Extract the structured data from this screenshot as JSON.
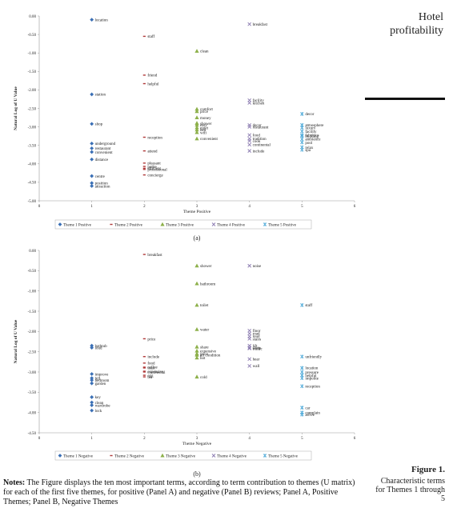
{
  "page": {
    "title": "Hotel profitability",
    "figure_label": "Figure 1.",
    "figure_caption": "Characteristic terms for Themes 1 through 5",
    "notes_label": "Notes:",
    "notes_text": "The Figure displays the ten most important terms, according to term contribution to themes (U matrix) for each of the first five themes, for positive (Panel A) and negative (Panel B) reviews; Panel A, Positive Themes; Panel B, Negative Themes"
  },
  "chart_data": [
    {
      "type": "scatter",
      "panel_label": "(a)",
      "xlabel": "Theme Positive",
      "ylabel": "Natural Log of U Value",
      "xlim": [
        0,
        6
      ],
      "ylim": [
        -5.0,
        0.0
      ],
      "xticks": [
        "0",
        "1",
        "2",
        "3",
        "4",
        "5",
        "6"
      ],
      "yticks": [
        "0.00",
        "-0.50",
        "-1.00",
        "-1.50",
        "-2.00",
        "-2.50",
        "-3.00",
        "-3.50",
        "-4.00",
        "-4.50",
        "-5.00"
      ],
      "legend_position": "bottom",
      "series": [
        {
          "name": "Theme 1 Positive",
          "color": "#3a6fb5",
          "marker": "diamond",
          "points": [
            {
              "x": 1,
              "y": -0.1,
              "label": "location"
            },
            {
              "x": 1,
              "y": -2.12,
              "label": "station"
            },
            {
              "x": 1,
              "y": -2.92,
              "label": "shop"
            },
            {
              "x": 1,
              "y": -3.45,
              "label": "underground"
            },
            {
              "x": 1,
              "y": -3.58,
              "label": "restaurant"
            },
            {
              "x": 1,
              "y": -3.68,
              "label": "convenient"
            },
            {
              "x": 1,
              "y": -3.88,
              "label": "distance"
            },
            {
              "x": 1,
              "y": -4.33,
              "label": "centre"
            },
            {
              "x": 1,
              "y": -4.52,
              "label": "position"
            },
            {
              "x": 1,
              "y": -4.6,
              "label": "attraction"
            }
          ]
        },
        {
          "name": "Theme 2 Positive",
          "color": "#b03a3a",
          "marker": "dash",
          "points": [
            {
              "x": 2,
              "y": -0.55,
              "label": "staff"
            },
            {
              "x": 2,
              "y": -1.6,
              "label": "friend"
            },
            {
              "x": 2,
              "y": -1.83,
              "label": "helpful"
            },
            {
              "x": 2,
              "y": -3.28,
              "label": "reception"
            },
            {
              "x": 2,
              "y": -3.65,
              "label": "attend"
            },
            {
              "x": 2,
              "y": -3.98,
              "label": "pleasant"
            },
            {
              "x": 2,
              "y": -4.07,
              "label": "polite"
            },
            {
              "x": 2,
              "y": -4.12,
              "label": "efficient"
            },
            {
              "x": 2,
              "y": -4.15,
              "label": "professional"
            },
            {
              "x": 2,
              "y": -4.3,
              "label": "concierge"
            }
          ]
        },
        {
          "name": "Theme 3 Positive",
          "color": "#8db04a",
          "marker": "triangle",
          "points": [
            {
              "x": 3,
              "y": -0.95,
              "label": "clean"
            },
            {
              "x": 3,
              "y": -2.52,
              "label": "comfort"
            },
            {
              "x": 3,
              "y": -2.58,
              "label": "price"
            },
            {
              "x": 3,
              "y": -2.75,
              "label": "money"
            },
            {
              "x": 3,
              "y": -2.9,
              "label": "shower"
            },
            {
              "x": 3,
              "y": -2.95,
              "label": "easy"
            },
            {
              "x": 3,
              "y": -3.02,
              "label": "quiet"
            },
            {
              "x": 3,
              "y": -3.08,
              "label": "bed"
            },
            {
              "x": 3,
              "y": -3.15,
              "label": "wifi"
            },
            {
              "x": 3,
              "y": -3.32,
              "label": "convenient"
            }
          ]
        },
        {
          "name": "Theme 4 Positive",
          "color": "#8a7ab0",
          "marker": "x",
          "points": [
            {
              "x": 4,
              "y": -0.22,
              "label": "breakfast"
            },
            {
              "x": 4,
              "y": -2.28,
              "label": "facility"
            },
            {
              "x": 4,
              "y": -2.35,
              "label": "kitchen"
            },
            {
              "x": 4,
              "y": -2.95,
              "label": "decor"
            },
            {
              "x": 4,
              "y": -3.0,
              "label": "restaurant"
            },
            {
              "x": 4,
              "y": -3.22,
              "label": "food"
            },
            {
              "x": 4,
              "y": -3.32,
              "label": "tradition"
            },
            {
              "x": 4,
              "y": -3.38,
              "label": "cook"
            },
            {
              "x": 4,
              "y": -3.48,
              "label": "continental"
            },
            {
              "x": 4,
              "y": -3.65,
              "label": "include"
            }
          ]
        },
        {
          "name": "Theme 5 Positive",
          "color": "#4aa8d8",
          "marker": "star",
          "points": [
            {
              "x": 5,
              "y": -2.65,
              "label": "decor"
            },
            {
              "x": 5,
              "y": -2.95,
              "label": "atmosphere"
            },
            {
              "x": 5,
              "y": -3.02,
              "label": "luxury"
            },
            {
              "x": 5,
              "y": -3.12,
              "label": "facility"
            },
            {
              "x": 5,
              "y": -3.22,
              "label": "fabulous"
            },
            {
              "x": 5,
              "y": -3.25,
              "label": "building"
            },
            {
              "x": 5,
              "y": -3.33,
              "label": "ambience"
            },
            {
              "x": 5,
              "y": -3.42,
              "label": "pool"
            },
            {
              "x": 5,
              "y": -3.55,
              "label": "relax"
            },
            {
              "x": 5,
              "y": -3.62,
              "label": "spa"
            }
          ]
        }
      ]
    },
    {
      "type": "scatter",
      "panel_label": "(b)",
      "xlabel": "Theme Negative",
      "ylabel": "Natural Log of U Value",
      "xlim": [
        0,
        6
      ],
      "ylim": [
        -4.5,
        0.0
      ],
      "xticks": [
        "0",
        "1",
        "2",
        "3",
        "4",
        "5",
        "6"
      ],
      "yticks": [
        "0.00",
        "-0.50",
        "-1.00",
        "-1.50",
        "-2.00",
        "-2.50",
        "-3.00",
        "-3.50",
        "-4.00",
        "-4.50"
      ],
      "legend_position": "bottom",
      "series": [
        {
          "name": "Theme 1 Negative",
          "color": "#3a6fb5",
          "marker": "diamond",
          "points": [
            {
              "x": 1,
              "y": -2.35,
              "label": "bathtub"
            },
            {
              "x": 1,
              "y": -2.4,
              "label": "loud"
            },
            {
              "x": 1,
              "y": -3.05,
              "label": "improve"
            },
            {
              "x": 1,
              "y": -3.15,
              "label": "bill"
            },
            {
              "x": 1,
              "y": -3.2,
              "label": "bedroom"
            },
            {
              "x": 1,
              "y": -3.28,
              "label": "garden"
            },
            {
              "x": 1,
              "y": -3.62,
              "label": "key"
            },
            {
              "x": 1,
              "y": -3.75,
              "label": "clean"
            },
            {
              "x": 1,
              "y": -3.82,
              "label": "wardrobe"
            },
            {
              "x": 1,
              "y": -3.95,
              "label": "lock"
            }
          ]
        },
        {
          "name": "Theme 2 Negative",
          "color": "#b03a3a",
          "marker": "dash",
          "points": [
            {
              "x": 2,
              "y": -0.1,
              "label": "breakfast"
            },
            {
              "x": 2,
              "y": -2.18,
              "label": "price"
            },
            {
              "x": 2,
              "y": -2.62,
              "label": "include"
            },
            {
              "x": 2,
              "y": -2.78,
              "label": "food"
            },
            {
              "x": 2,
              "y": -2.88,
              "label": "coffee"
            },
            {
              "x": 2,
              "y": -2.9,
              "label": "toast"
            },
            {
              "x": 2,
              "y": -2.98,
              "label": "expensive"
            },
            {
              "x": 2,
              "y": -3.0,
              "label": "continental"
            },
            {
              "x": 2,
              "y": -3.08,
              "label": "egg"
            },
            {
              "x": 2,
              "y": -3.12,
              "label": "tea"
            }
          ]
        },
        {
          "name": "Theme 3 Negative",
          "color": "#8db04a",
          "marker": "triangle",
          "points": [
            {
              "x": 3,
              "y": -0.38,
              "label": "shower"
            },
            {
              "x": 3,
              "y": -0.82,
              "label": "bathroom"
            },
            {
              "x": 3,
              "y": -1.35,
              "label": "toilet"
            },
            {
              "x": 3,
              "y": -1.95,
              "label": "water"
            },
            {
              "x": 3,
              "y": -2.38,
              "label": "share"
            },
            {
              "x": 3,
              "y": -2.48,
              "label": "expensive"
            },
            {
              "x": 3,
              "y": -2.55,
              "label": "price"
            },
            {
              "x": 3,
              "y": -2.58,
              "label": "air condition"
            },
            {
              "x": 3,
              "y": -2.65,
              "label": "hot"
            },
            {
              "x": 3,
              "y": -3.12,
              "label": "cold"
            }
          ]
        },
        {
          "name": "Theme 4 Negative",
          "color": "#8a7ab0",
          "marker": "x",
          "points": [
            {
              "x": 4,
              "y": -0.38,
              "label": "noise"
            },
            {
              "x": 4,
              "y": -1.98,
              "label": "floor"
            },
            {
              "x": 4,
              "y": -2.05,
              "label": "road"
            },
            {
              "x": 4,
              "y": -2.12,
              "label": "loud"
            },
            {
              "x": 4,
              "y": -2.18,
              "label": "stairs"
            },
            {
              "x": 4,
              "y": -2.35,
              "label": "lift"
            },
            {
              "x": 4,
              "y": -2.4,
              "label": "sleep"
            },
            {
              "x": 4,
              "y": -2.42,
              "label": "traffic"
            },
            {
              "x": 4,
              "y": -2.68,
              "label": "hear"
            },
            {
              "x": 4,
              "y": -2.85,
              "label": "wall"
            }
          ]
        },
        {
          "name": "Theme 5 Negative",
          "color": "#4aa8d8",
          "marker": "star",
          "points": [
            {
              "x": 5,
              "y": -1.35,
              "label": "staff"
            },
            {
              "x": 5,
              "y": -2.62,
              "label": "unfriendly"
            },
            {
              "x": 5,
              "y": -2.9,
              "label": "location"
            },
            {
              "x": 5,
              "y": -3.0,
              "label": "pressure"
            },
            {
              "x": 5,
              "y": -3.08,
              "label": "helpful"
            },
            {
              "x": 5,
              "y": -3.15,
              "label": "impolite"
            },
            {
              "x": 5,
              "y": -3.35,
              "label": "reception"
            },
            {
              "x": 5,
              "y": -3.88,
              "label": "car"
            },
            {
              "x": 5,
              "y": -4.0,
              "label": "complain"
            },
            {
              "x": 5,
              "y": -4.05,
              "label": "arrive"
            }
          ]
        }
      ]
    }
  ]
}
